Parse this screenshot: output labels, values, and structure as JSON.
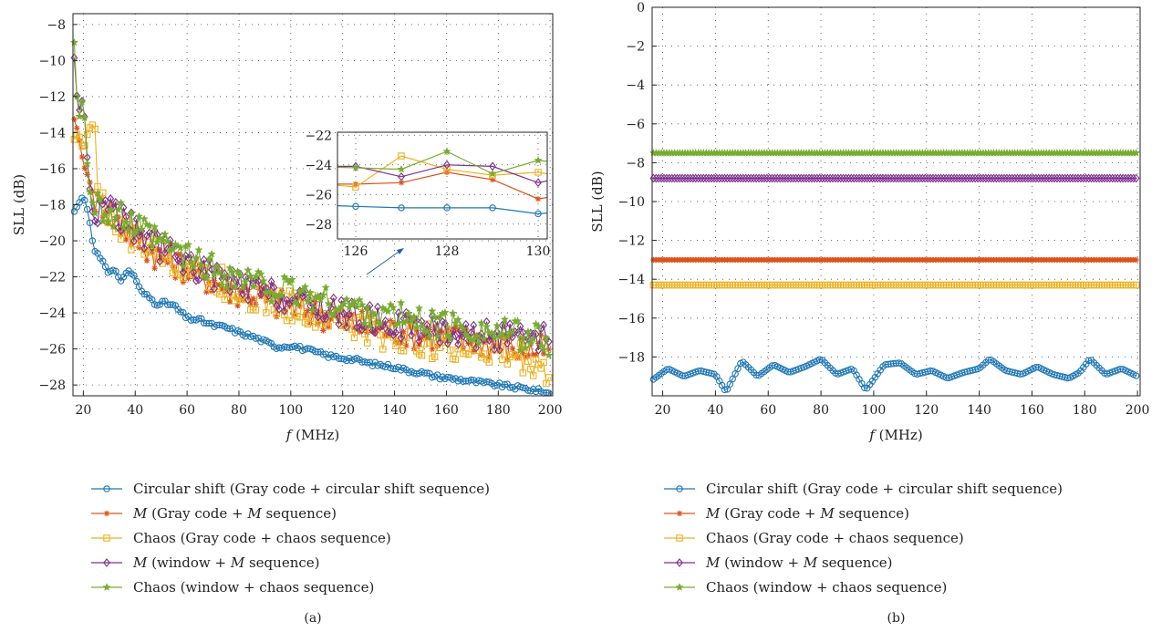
{
  "chart_data": [
    {
      "type": "line",
      "panel_label": "(a)",
      "xlabel_var": "f",
      "xlabel_unit": "(MHz)",
      "ylabel": "SLL (dB)",
      "xlim": [
        16,
        201
      ],
      "ylim": [
        -28.6,
        -7.4
      ],
      "xticks": [
        20,
        40,
        60,
        80,
        100,
        120,
        140,
        160,
        180,
        200
      ],
      "yticks": [
        -28,
        -26,
        -24,
        -22,
        -20,
        -18,
        -16,
        -14,
        -12,
        -10,
        -8
      ],
      "grid": true,
      "legend_position": "below",
      "series": [
        {
          "name": "Circular shift (Gray code + circular shift sequence)",
          "color": "#1f77b4",
          "marker": "circle",
          "x": [
            16,
            20,
            22,
            24,
            26,
            28,
            30,
            32,
            34,
            36,
            38,
            40,
            42,
            44,
            46,
            48,
            50,
            55,
            60,
            65,
            70,
            75,
            80,
            85,
            90,
            95,
            100,
            105,
            110,
            115,
            120,
            125,
            130,
            135,
            140,
            145,
            150,
            155,
            160,
            165,
            170,
            175,
            180,
            185,
            190,
            195,
            200
          ],
          "y": [
            -18.5,
            -17.5,
            -18.5,
            -20.5,
            -20.8,
            -21.2,
            -21.8,
            -21.6,
            -22.3,
            -21.8,
            -21.7,
            -22.0,
            -22.8,
            -23.0,
            -23.2,
            -23.5,
            -23.4,
            -23.6,
            -24.3,
            -24.4,
            -24.7,
            -24.8,
            -25.1,
            -25.3,
            -25.6,
            -25.9,
            -25.8,
            -26.0,
            -26.2,
            -26.4,
            -26.5,
            -26.6,
            -26.8,
            -26.9,
            -27.0,
            -27.2,
            -27.3,
            -27.5,
            -27.6,
            -27.7,
            -27.8,
            -27.9,
            -28.0,
            -28.1,
            -28.2,
            -28.3,
            -28.5
          ]
        },
        {
          "name": "M (Gray code + M sequence)",
          "color": "#d95319",
          "marker": "asterisk",
          "x": [
            16,
            18,
            20,
            22,
            24,
            26,
            28,
            30,
            35,
            40,
            45,
            50,
            55,
            60,
            65,
            70,
            75,
            80,
            85,
            90,
            95,
            100,
            105,
            110,
            115,
            120,
            125,
            130,
            135,
            140,
            145,
            150,
            155,
            160,
            165,
            170,
            175,
            180,
            185,
            190,
            195,
            200
          ],
          "y": [
            -13.0,
            -14.0,
            -15.8,
            -16.5,
            -17.5,
            -18.2,
            -17.8,
            -18.5,
            -19.2,
            -19.8,
            -20.4,
            -20.9,
            -21.2,
            -21.5,
            -21.9,
            -22.2,
            -22.6,
            -22.8,
            -22.9,
            -23.3,
            -23.5,
            -23.6,
            -23.8,
            -24.0,
            -24.2,
            -24.4,
            -24.6,
            -24.8,
            -24.9,
            -25.0,
            -25.0,
            -25.2,
            -25.2,
            -25.4,
            -25.5,
            -25.5,
            -25.6,
            -25.8,
            -25.9,
            -26.0,
            -26.1,
            -26.0
          ]
        },
        {
          "name": "Chaos (Gray code + chaos sequence)",
          "color": "#edb120",
          "marker": "square",
          "x": [
            16,
            18,
            20,
            22,
            24,
            26,
            28,
            30,
            35,
            40,
            45,
            50,
            55,
            60,
            65,
            70,
            75,
            80,
            85,
            90,
            95,
            100,
            105,
            110,
            115,
            120,
            125,
            130,
            135,
            140,
            145,
            150,
            155,
            160,
            165,
            170,
            175,
            180,
            185,
            190,
            195,
            200
          ],
          "y": [
            -14.5,
            -14.0,
            -15.0,
            -13.8,
            -13.5,
            -17.0,
            -18.0,
            -18.5,
            -19.3,
            -19.9,
            -20.3,
            -20.7,
            -21.0,
            -21.3,
            -21.7,
            -22.1,
            -22.4,
            -22.7,
            -22.9,
            -23.2,
            -23.4,
            -23.6,
            -23.8,
            -24.0,
            -24.3,
            -24.5,
            -24.7,
            -24.9,
            -25.1,
            -25.2,
            -25.4,
            -25.5,
            -25.6,
            -25.8,
            -25.9,
            -26.0,
            -26.1,
            -26.2,
            -26.3,
            -26.5,
            -26.7,
            -27.5
          ]
        },
        {
          "name": "M (window + M sequence)",
          "color": "#7e2f8e",
          "marker": "diamond",
          "x": [
            16,
            18,
            20,
            22,
            24,
            26,
            28,
            30,
            35,
            40,
            45,
            50,
            55,
            60,
            65,
            70,
            75,
            80,
            85,
            90,
            95,
            100,
            105,
            110,
            115,
            120,
            125,
            130,
            135,
            140,
            145,
            150,
            155,
            160,
            165,
            170,
            175,
            180,
            185,
            190,
            195,
            200
          ],
          "y": [
            -8.8,
            -13.0,
            -12.0,
            -16.5,
            -19.0,
            -18.5,
            -17.5,
            -18.0,
            -18.8,
            -19.4,
            -19.9,
            -20.4,
            -20.8,
            -21.2,
            -21.6,
            -21.9,
            -22.2,
            -22.5,
            -22.7,
            -22.9,
            -23.1,
            -23.3,
            -23.5,
            -23.6,
            -23.8,
            -24.0,
            -24.2,
            -24.3,
            -24.5,
            -24.6,
            -24.7,
            -24.8,
            -24.9,
            -25.0,
            -25.1,
            -25.2,
            -25.2,
            -25.3,
            -25.4,
            -25.5,
            -25.6,
            -25.3
          ]
        },
        {
          "name": "Chaos (window + chaos sequence)",
          "color": "#77ac30",
          "marker": "star",
          "x": [
            16,
            18,
            20,
            22,
            24,
            26,
            28,
            30,
            35,
            40,
            45,
            50,
            55,
            60,
            65,
            70,
            75,
            80,
            85,
            90,
            95,
            100,
            105,
            110,
            115,
            120,
            125,
            130,
            135,
            140,
            145,
            150,
            155,
            160,
            165,
            170,
            175,
            180,
            185,
            190,
            195,
            200
          ],
          "y": [
            -7.5,
            -13.5,
            -11.9,
            -17.0,
            -18.2,
            -17.0,
            -18.5,
            -18.7,
            -18.7,
            -19.3,
            -19.7,
            -20.2,
            -20.5,
            -20.9,
            -21.2,
            -21.5,
            -21.8,
            -22.1,
            -22.3,
            -22.5,
            -22.7,
            -22.9,
            -23.0,
            -23.2,
            -23.4,
            -23.6,
            -23.7,
            -23.9,
            -24.1,
            -24.2,
            -24.3,
            -24.5,
            -24.6,
            -24.7,
            -24.8,
            -24.9,
            -25.0,
            -25.1,
            -25.2,
            -25.3,
            -25.4,
            -26.0
          ]
        }
      ],
      "inset": {
        "xlim": [
          125.6,
          130.2
        ],
        "ylim": [
          -29.0,
          -21.8
        ],
        "xticks": [
          126,
          128,
          130
        ],
        "yticks": [
          -28,
          -26,
          -24,
          -22
        ],
        "x": [
          125,
          126,
          127,
          128,
          129,
          130,
          131
        ],
        "series_y": [
          [
            -26.7,
            -26.8,
            -26.9,
            -26.9,
            -26.9,
            -27.3,
            -27.1
          ],
          [
            -25.3,
            -25.3,
            -25.2,
            -24.5,
            -25.0,
            -26.3,
            -25.8
          ],
          [
            -25.2,
            -25.5,
            -23.4,
            -24.3,
            -24.7,
            -24.5,
            -25.0
          ],
          [
            -24.1,
            -24.1,
            -24.8,
            -24.0,
            -24.1,
            -25.2,
            -24.6
          ],
          [
            -24.1,
            -24.2,
            -24.3,
            -23.1,
            -24.6,
            -23.7,
            -24.0
          ]
        ]
      }
    },
    {
      "type": "line",
      "panel_label": "(b)",
      "xlabel_var": "f",
      "xlabel_unit": "(MHz)",
      "ylabel": "SLL (dB)",
      "xlim": [
        16,
        201
      ],
      "ylim": [
        -20,
        0
      ],
      "xticks": [
        20,
        40,
        60,
        80,
        100,
        120,
        140,
        160,
        180,
        200
      ],
      "yticks": [
        0,
        -2,
        -4,
        -6,
        -8,
        -10,
        -12,
        -14,
        -16,
        -18
      ],
      "grid": true,
      "legend_position": "below",
      "series": [
        {
          "name": "Circular shift (Gray code + circular shift sequence)",
          "color": "#1f77b4",
          "marker": "circle",
          "x": [
            16,
            22,
            28,
            34,
            40,
            44,
            50,
            56,
            62,
            68,
            74,
            80,
            86,
            92,
            97,
            104,
            110,
            116,
            122,
            128,
            134,
            140,
            144,
            150,
            156,
            162,
            168,
            174,
            178,
            182,
            188,
            194,
            200
          ],
          "y": [
            -19.2,
            -18.6,
            -19.0,
            -18.7,
            -18.9,
            -19.8,
            -18.2,
            -19.0,
            -18.4,
            -18.8,
            -18.5,
            -18.1,
            -18.9,
            -18.6,
            -19.7,
            -18.4,
            -18.3,
            -18.9,
            -18.7,
            -19.1,
            -18.8,
            -18.6,
            -18.1,
            -18.7,
            -18.9,
            -18.5,
            -18.9,
            -19.1,
            -18.8,
            -18.1,
            -18.9,
            -18.6,
            -19.0
          ]
        },
        {
          "name": "M (Gray code + M sequence)",
          "color": "#d95319",
          "marker": "asterisk",
          "x": [
            16,
            200
          ],
          "y": [
            -13.0,
            -13.0
          ]
        },
        {
          "name": "Chaos (Gray code + chaos sequence)",
          "color": "#edb120",
          "marker": "square",
          "x": [
            16,
            200
          ],
          "y": [
            -14.3,
            -14.3
          ]
        },
        {
          "name": "M (window + M sequence)",
          "color": "#7e2f8e",
          "marker": "diamond",
          "x": [
            16,
            200
          ],
          "y": [
            -8.8,
            -8.8
          ]
        },
        {
          "name": "Chaos (window + chaos sequence)",
          "color": "#77ac30",
          "marker": "star",
          "x": [
            16,
            200
          ],
          "y": [
            -7.5,
            -7.5
          ]
        }
      ]
    }
  ]
}
